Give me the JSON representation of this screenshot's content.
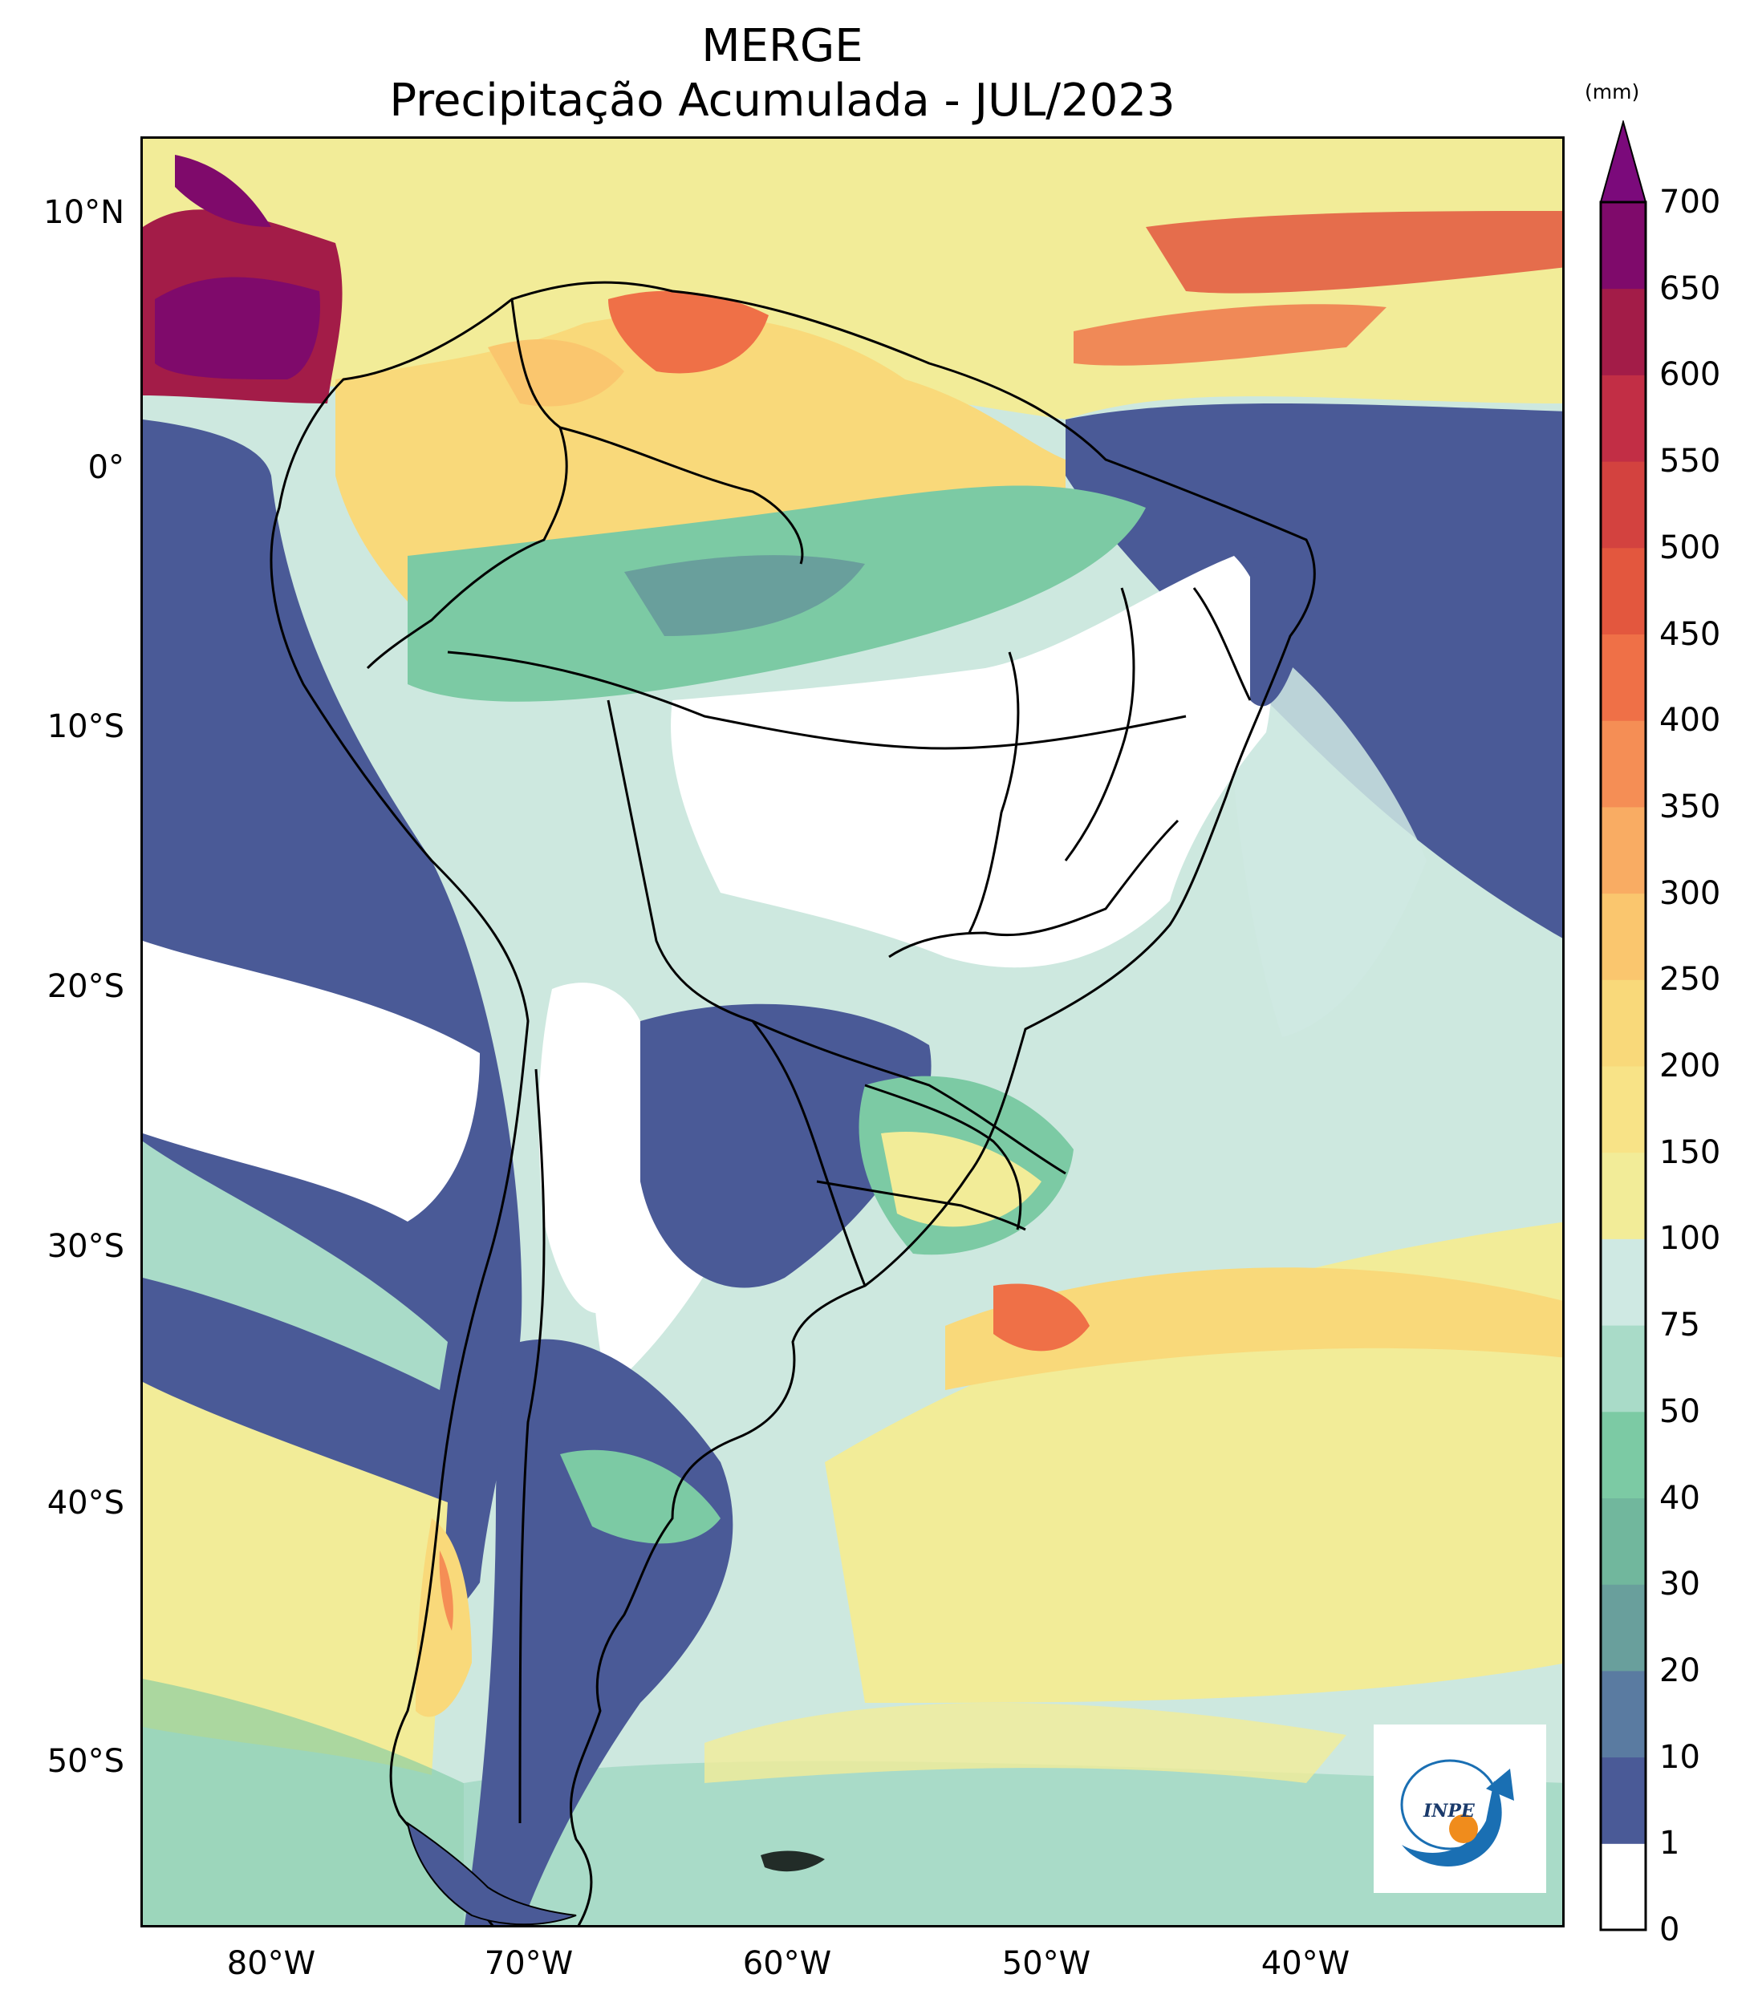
{
  "title": {
    "line1": "MERGE",
    "line2": "Precipitação Acumulada - JUL/2023"
  },
  "map": {
    "extent": {
      "lon_min": -85,
      "lon_max": -30,
      "lat_min": -56,
      "lat_max": 13
    },
    "lat_ticks": [
      "10°N",
      "0°",
      "10°S",
      "20°S",
      "30°S",
      "40°S",
      "50°S"
    ],
    "lon_ticks": [
      "80°W",
      "70°W",
      "60°W",
      "50°W",
      "40°W"
    ]
  },
  "colorbar": {
    "unit": "(mm)",
    "ticks": [
      "0",
      "1",
      "10",
      "20",
      "30",
      "40",
      "50",
      "75",
      "100",
      "150",
      "200",
      "250",
      "300",
      "350",
      "400",
      "450",
      "500",
      "550",
      "600",
      "650",
      "700"
    ],
    "colors": [
      "#ffffff",
      "#4a5a97",
      "#5a7ba1",
      "#699f9c",
      "#71b79d",
      "#7ccaa4",
      "#a9dbc8",
      "#cfe9e3",
      "#f2ec98",
      "#f8e387",
      "#f9d97a",
      "#fac66e",
      "#f9ac63",
      "#f58e55",
      "#ef7047",
      "#e3573e",
      "#d3423f",
      "#c22e45",
      "#a31c48",
      "#7f0a6b"
    ],
    "extend_color": "#7b0a7b"
  },
  "logo": {
    "text": "INPE",
    "colors": {
      "blue": "#1a6fb3",
      "orange": "#f08c1c"
    }
  }
}
